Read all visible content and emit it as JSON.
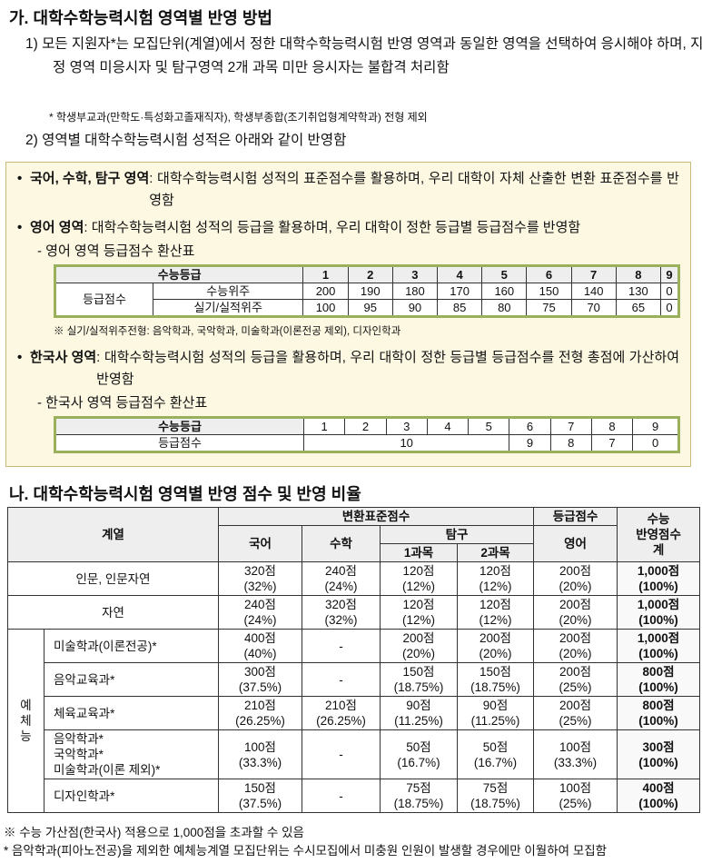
{
  "section1": {
    "title": "가. 대학수학능력시험 영역별 반영 방법",
    "item1": "1) 모든 지원자*는 모집단위(계열)에서 정한 대학수학능력시험 반영 영역과 동일한 영역을 선택하여 응시해야 하며, 지정 영역 미응시자 및 탐구영역 2개 과목 미만 응시자는 불합격 처리함",
    "note": "* 학생부교과(만학도·특성화고졸재직자), 학생부종합(조기취업형계약학과) 전형 제외",
    "item2": "2) 영역별 대학수학능력시험 성적은 아래와 같이 반영함",
    "box": {
      "bullet1": {
        "label": "국어, 수학, 탐구 영역",
        "text": ": 대학수학능력시험 성적의 표준점수를 활용하며, 우리 대학이 자체 산출한 변환 표준점수를 반영함"
      },
      "bullet2": {
        "label": "영어 영역",
        "text": ": 대학수학능력시험 성적의 등급을 활용하며, 우리 대학이 정한 등급별 등급점수를 반영함",
        "sub": "- 영어 영역 등급점수 환산표",
        "table": {
          "header": [
            "수능등급",
            "1",
            "2",
            "3",
            "4",
            "5",
            "6",
            "7",
            "8",
            "9"
          ],
          "rowLabel": "등급점수",
          "rows": [
            {
              "name": "수능위주",
              "values": [
                "200",
                "190",
                "180",
                "170",
                "160",
                "150",
                "140",
                "130",
                "0"
              ]
            },
            {
              "name": "실기/실적위주",
              "values": [
                "100",
                "95",
                "90",
                "85",
                "80",
                "75",
                "70",
                "65",
                "0"
              ]
            }
          ]
        },
        "note": "※ 실기/실적위주전형: 음악학과, 국악학과, 미술학과(이론전공 제외), 디자인학과"
      },
      "bullet3": {
        "label": "한국사 영역",
        "text": ": 대학수학능력시험 성적의 등급을 활용하며, 우리 대학이 정한 등급별 등급점수를 전형 총점에 가산하여 반영함",
        "sub": "- 한국사 영역 등급점수 환산표",
        "table": {
          "header": [
            "수능등급",
            "1",
            "2",
            "3",
            "4",
            "5",
            "6",
            "7",
            "8",
            "9"
          ],
          "rowLabel": "등급점수",
          "values": [
            "10",
            "9",
            "8",
            "7",
            "0"
          ]
        }
      }
    }
  },
  "section2": {
    "title": "나. 대학수학능력시험 영역별 반영 점수 및 반영 비율",
    "header": {
      "group": "계열",
      "conv": "변환표준점수",
      "grade": "등급점수",
      "total": [
        "수능",
        "반영점수",
        "계"
      ],
      "kor": "국어",
      "math": "수학",
      "inq": "탐구",
      "eng": "영어",
      "sub1": "1과목",
      "sub2": "2과목"
    },
    "rows": [
      {
        "name": [
          "인문, 인문자연"
        ],
        "cells": [
          [
            "320점",
            "(32%)"
          ],
          [
            "240점",
            "(24%)"
          ],
          [
            "120점",
            "(12%)"
          ],
          [
            "120점",
            "(12%)"
          ],
          [
            "200점",
            "(20%)"
          ],
          [
            "1,000점",
            "(100%)"
          ]
        ]
      },
      {
        "name": [
          "자연"
        ],
        "cells": [
          [
            "240점",
            "(24%)"
          ],
          [
            "320점",
            "(32%)"
          ],
          [
            "120점",
            "(12%)"
          ],
          [
            "120점",
            "(12%)"
          ],
          [
            "200점",
            "(20%)"
          ],
          [
            "1,000점",
            "(100%)"
          ]
        ]
      }
    ],
    "arts": {
      "label": [
        "예",
        "체",
        "능"
      ],
      "rows": [
        {
          "name": [
            "미술학과(이론전공)*"
          ],
          "cells": [
            [
              "400점",
              "(40%)"
            ],
            [
              "-"
            ],
            [
              "200점",
              "(20%)"
            ],
            [
              "200점",
              "(20%)"
            ],
            [
              "200점",
              "(20%)"
            ],
            [
              "1,000점",
              "(100%)"
            ]
          ]
        },
        {
          "name": [
            "음악교육과*"
          ],
          "cells": [
            [
              "300점",
              "(37.5%)"
            ],
            [
              "-"
            ],
            [
              "150점",
              "(18.75%)"
            ],
            [
              "150점",
              "(18.75%)"
            ],
            [
              "200점",
              "(25%)"
            ],
            [
              "800점",
              "(100%)"
            ]
          ]
        },
        {
          "name": [
            "체육교육과*"
          ],
          "cells": [
            [
              "210점",
              "(26.25%)"
            ],
            [
              "210점",
              "(26.25%)"
            ],
            [
              "90점",
              "(11.25%)"
            ],
            [
              "90점",
              "(11.25%)"
            ],
            [
              "200점",
              "(25%)"
            ],
            [
              "800점",
              "(100%)"
            ]
          ]
        },
        {
          "name": [
            "음악학과*",
            "국악학과*",
            "미술학과(이론 제외)*"
          ],
          "cells": [
            [
              "100점",
              "(33.3%)"
            ],
            [
              "-"
            ],
            [
              "50점",
              "(16.7%)"
            ],
            [
              "50점",
              "(16.7%)"
            ],
            [
              "100점",
              "(33.3%)"
            ],
            [
              "300점",
              "(100%)"
            ]
          ]
        },
        {
          "name": [
            "디자인학과*"
          ],
          "cells": [
            [
              "150점",
              "(37.5%)"
            ],
            [
              "-"
            ],
            [
              "75점",
              "(18.75%)"
            ],
            [
              "75점",
              "(18.75%)"
            ],
            [
              "100점",
              "(25%)"
            ],
            [
              "400점",
              "(100%)"
            ]
          ]
        }
      ]
    },
    "footnotes": [
      "※ 수능 가산점(한국사) 적용으로 1,000점을 초과할 수 있음",
      "* 음악학과(피아노전공)을 제외한 예체능계열 모집단위는 수시모집에서 미충원 인원이 발생할 경우에만 이월하여 모집함"
    ]
  }
}
